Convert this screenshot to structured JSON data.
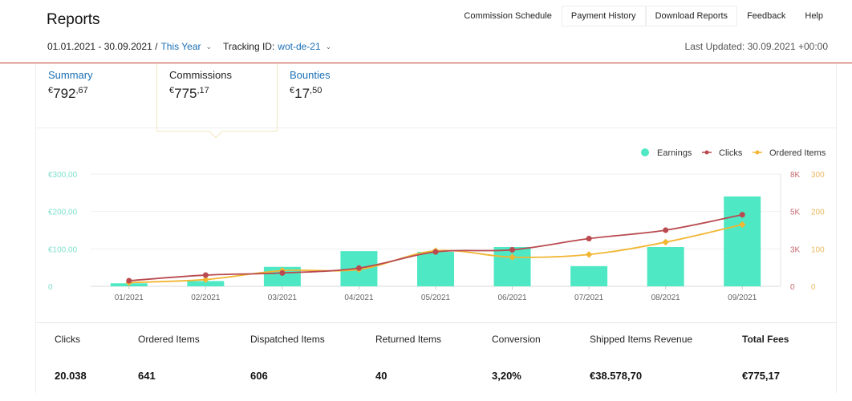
{
  "header": {
    "title": "Reports",
    "nav": [
      "Commission Schedule",
      "Payment History",
      "Download Reports",
      "Feedback",
      "Help"
    ],
    "date_range": "01.01.2021 - 30.09.2021 /",
    "period": "This Year",
    "tracking_label": "Tracking ID:",
    "tracking_id": "wot-de-21",
    "last_updated": "Last Updated: 30.09.2021 +00:00"
  },
  "tabs": {
    "summary": {
      "label": "Summary",
      "currency": "€",
      "int": "792",
      "dec": ",67"
    },
    "commissions": {
      "label": "Commissions",
      "currency": "€",
      "int": "775",
      "dec": ",17"
    },
    "bounties": {
      "label": "Bounties",
      "currency": "€",
      "int": "17",
      "dec": ",50"
    }
  },
  "colors": {
    "earnings": "#4ee8c5",
    "clicks": "#b94a4f",
    "ordered": "#f2b632",
    "link": "#1a6fb5"
  },
  "chart_data": {
    "type": "bar",
    "categories": [
      "01/2021",
      "02/2021",
      "03/2021",
      "04/2021",
      "05/2021",
      "06/2021",
      "07/2021",
      "08/2021",
      "09/2021"
    ],
    "legend": [
      "Earnings",
      "Clicks",
      "Ordered Items"
    ],
    "legend_position": "top-right",
    "series": [
      {
        "name": "Earnings",
        "type": "bar",
        "axis": "left",
        "values": [
          8,
          14,
          52,
          94,
          92,
          105,
          54,
          105,
          240
        ]
      },
      {
        "name": "Clicks",
        "type": "line",
        "axis": "right1",
        "values": [
          400,
          800,
          950,
          1300,
          2450,
          2600,
          3400,
          4000,
          5100
        ]
      },
      {
        "name": "Ordered Items",
        "type": "line",
        "axis": "right2",
        "values": [
          10,
          18,
          42,
          45,
          95,
          78,
          85,
          118,
          165
        ]
      }
    ],
    "left_axis": {
      "ticks": [
        "€300,00",
        "€200,00",
        "€100,00",
        "0"
      ],
      "max": 300
    },
    "right_axis_1": {
      "ticks": [
        "8K",
        "5K",
        "3K",
        "0"
      ],
      "max": 8000
    },
    "right_axis_2": {
      "ticks": [
        "300",
        "200",
        "100",
        "0"
      ],
      "max": 300
    },
    "grid": true
  },
  "stats": [
    {
      "label": "Clicks",
      "value": "20.038"
    },
    {
      "label": "Ordered Items",
      "value": "641"
    },
    {
      "label": "Dispatched Items",
      "value": "606"
    },
    {
      "label": "Returned Items",
      "value": "40"
    },
    {
      "label": "Conversion",
      "value": "3,20%"
    },
    {
      "label": "Shipped Items Revenue",
      "value": "€38.578,70"
    },
    {
      "label": "Total Fees",
      "value": "€775,17"
    }
  ]
}
